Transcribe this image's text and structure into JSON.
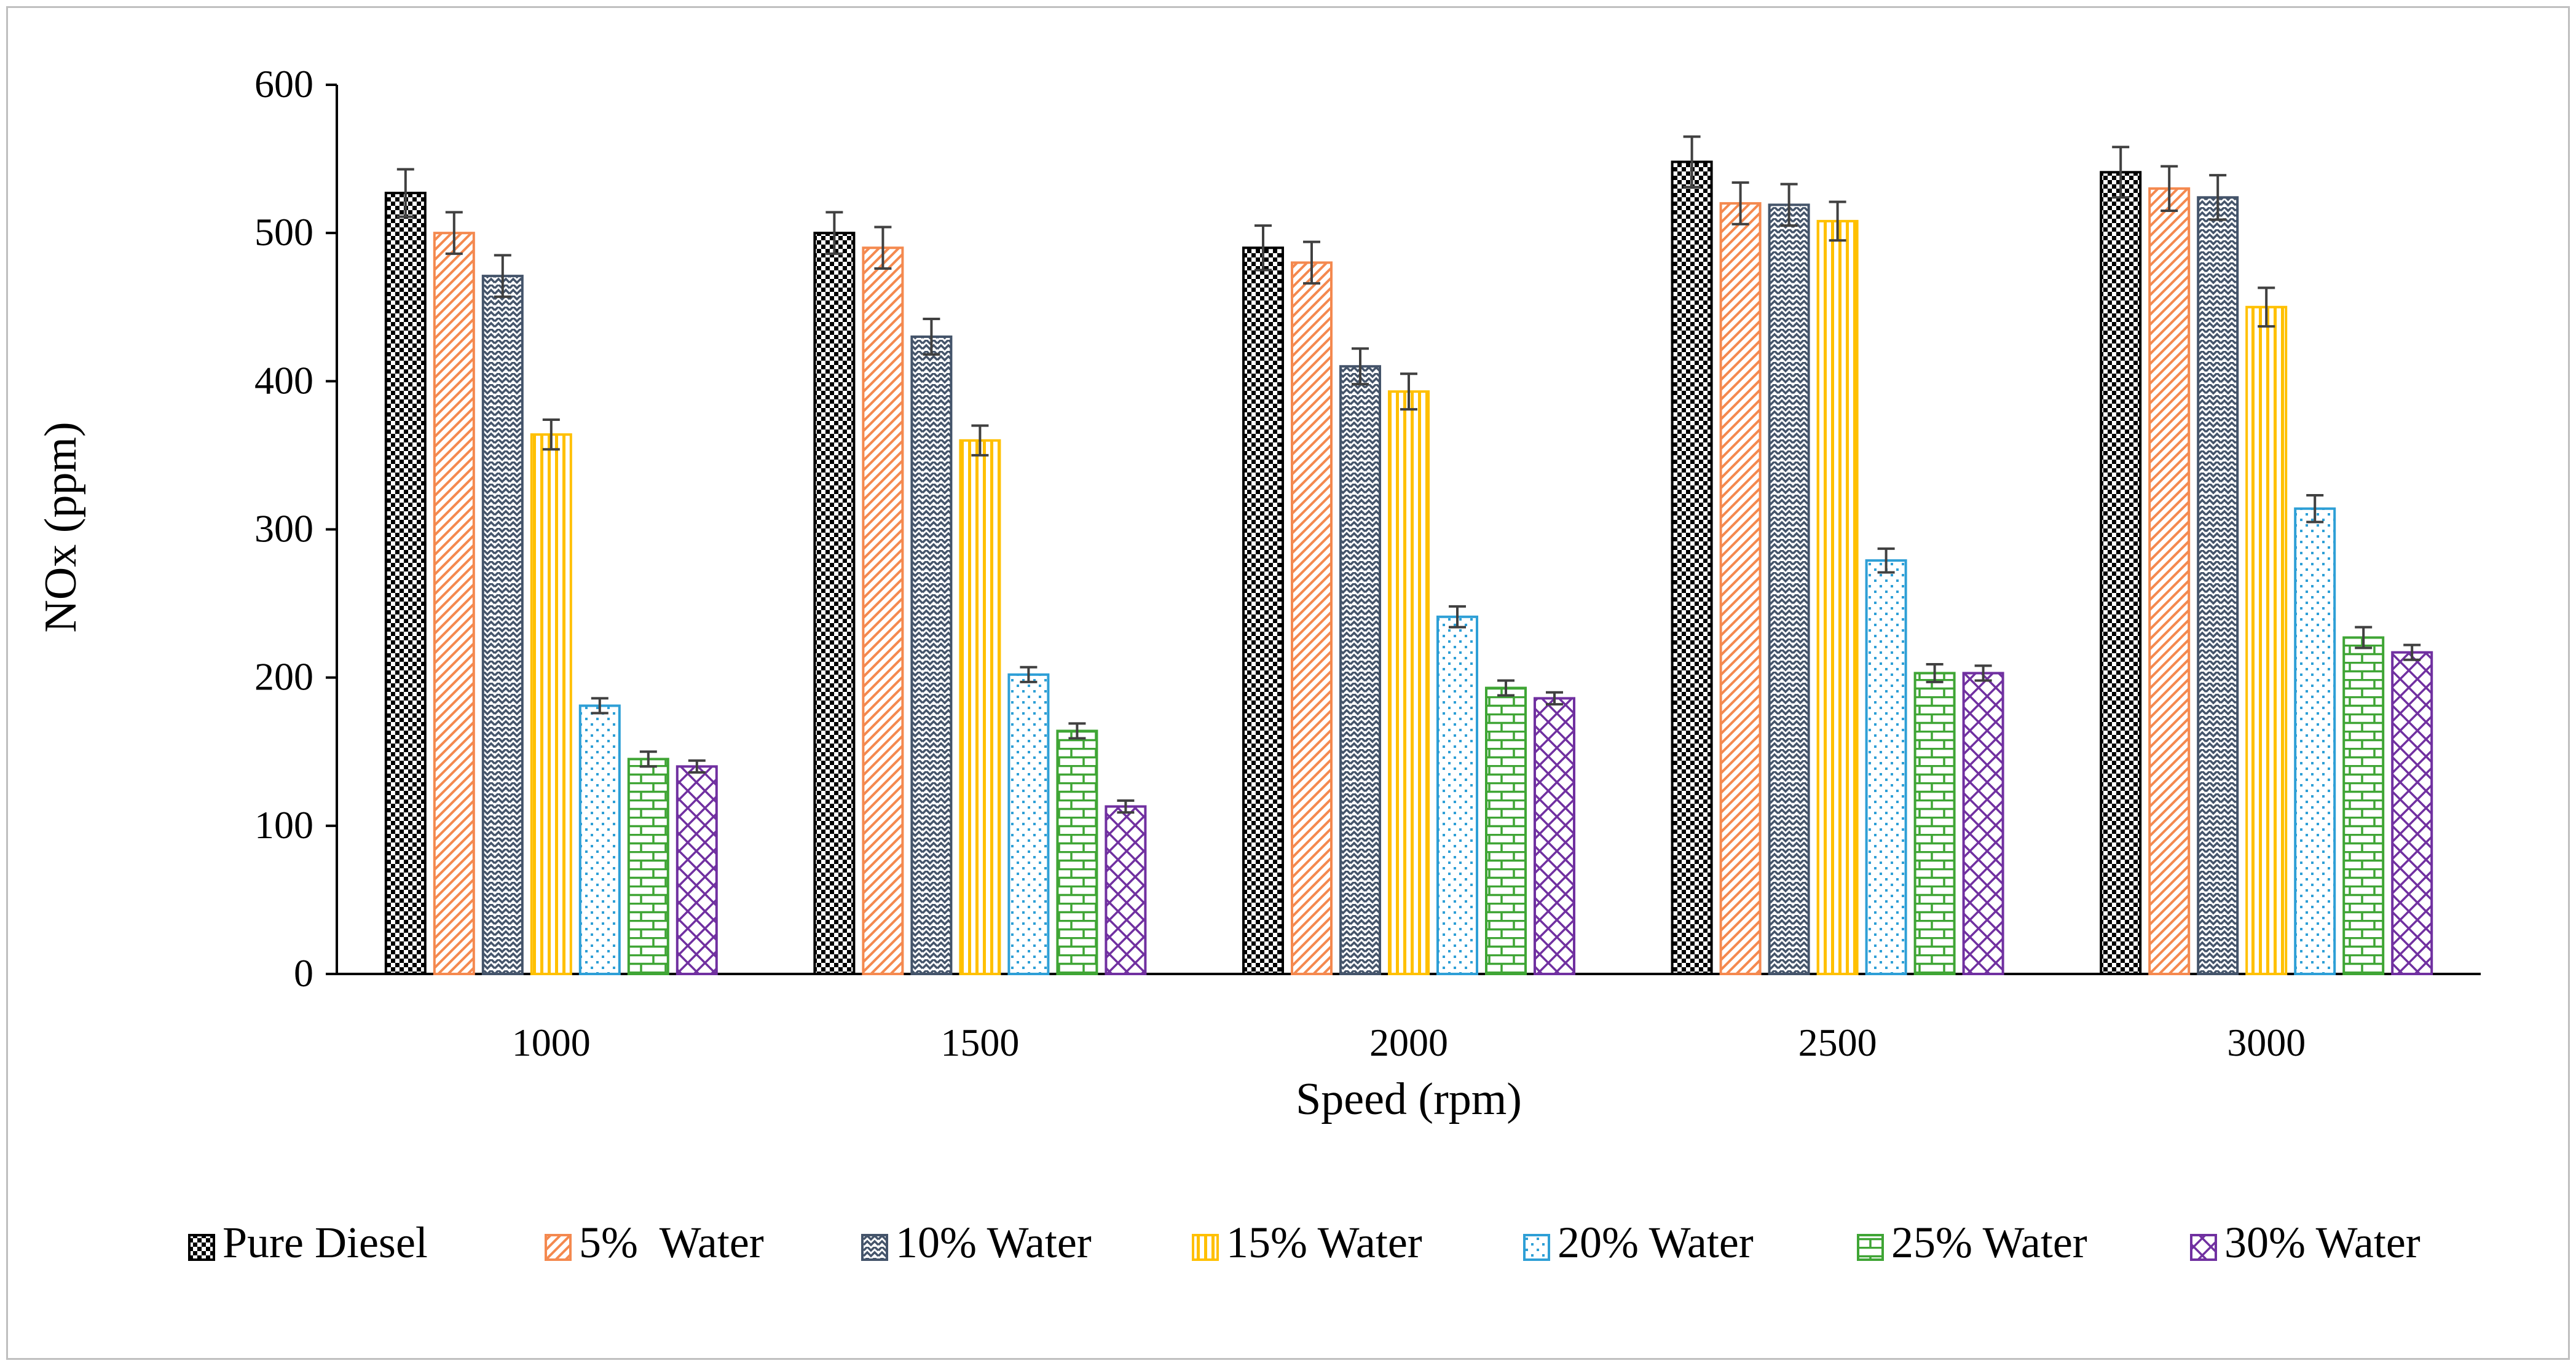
{
  "chart_data": {
    "type": "bar",
    "title": "",
    "xlabel": "Speed (rpm)",
    "ylabel": "NOx (ppm)",
    "ylim": [
      0,
      600
    ],
    "yticks": [
      "0",
      "100",
      "200",
      "300",
      "400",
      "500",
      "600"
    ],
    "grid": false,
    "legend_position": "bottom",
    "categories": [
      "1000",
      "1500",
      "2000",
      "2500",
      "3000"
    ],
    "series": [
      {
        "name": "Pure Diesel",
        "color": "#000000",
        "pattern": "checker",
        "values": [
          527,
          500,
          490,
          548,
          541
        ],
        "errors": [
          16,
          14,
          15,
          17,
          17
        ]
      },
      {
        "name": "5%  Water",
        "color": "#f4894f",
        "pattern": "diag",
        "values": [
          500,
          490,
          480,
          520,
          530
        ],
        "errors": [
          14,
          14,
          14,
          14,
          15
        ]
      },
      {
        "name": "10% Water",
        "color": "#44546a",
        "pattern": "zigzag",
        "values": [
          471,
          430,
          410,
          519,
          524
        ],
        "errors": [
          14,
          12,
          12,
          14,
          15
        ]
      },
      {
        "name": "15% Water",
        "color": "#ffc000",
        "pattern": "vert",
        "values": [
          364,
          360,
          393,
          508,
          450
        ],
        "errors": [
          10,
          10,
          12,
          13,
          13
        ]
      },
      {
        "name": "20% Water",
        "color": "#2e9fd6",
        "pattern": "dots",
        "values": [
          181,
          202,
          241,
          279,
          314
        ],
        "errors": [
          5,
          5,
          7,
          8,
          9
        ]
      },
      {
        "name": "25% Water",
        "color": "#3fa535",
        "pattern": "brick",
        "values": [
          145,
          164,
          193,
          203,
          227
        ],
        "errors": [
          5,
          5,
          5,
          6,
          7
        ]
      },
      {
        "name": "30% Water",
        "color": "#7030a0",
        "pattern": "cross",
        "values": [
          140,
          113,
          186,
          203,
          217
        ],
        "errors": [
          4,
          4,
          4,
          5,
          5
        ]
      }
    ]
  }
}
